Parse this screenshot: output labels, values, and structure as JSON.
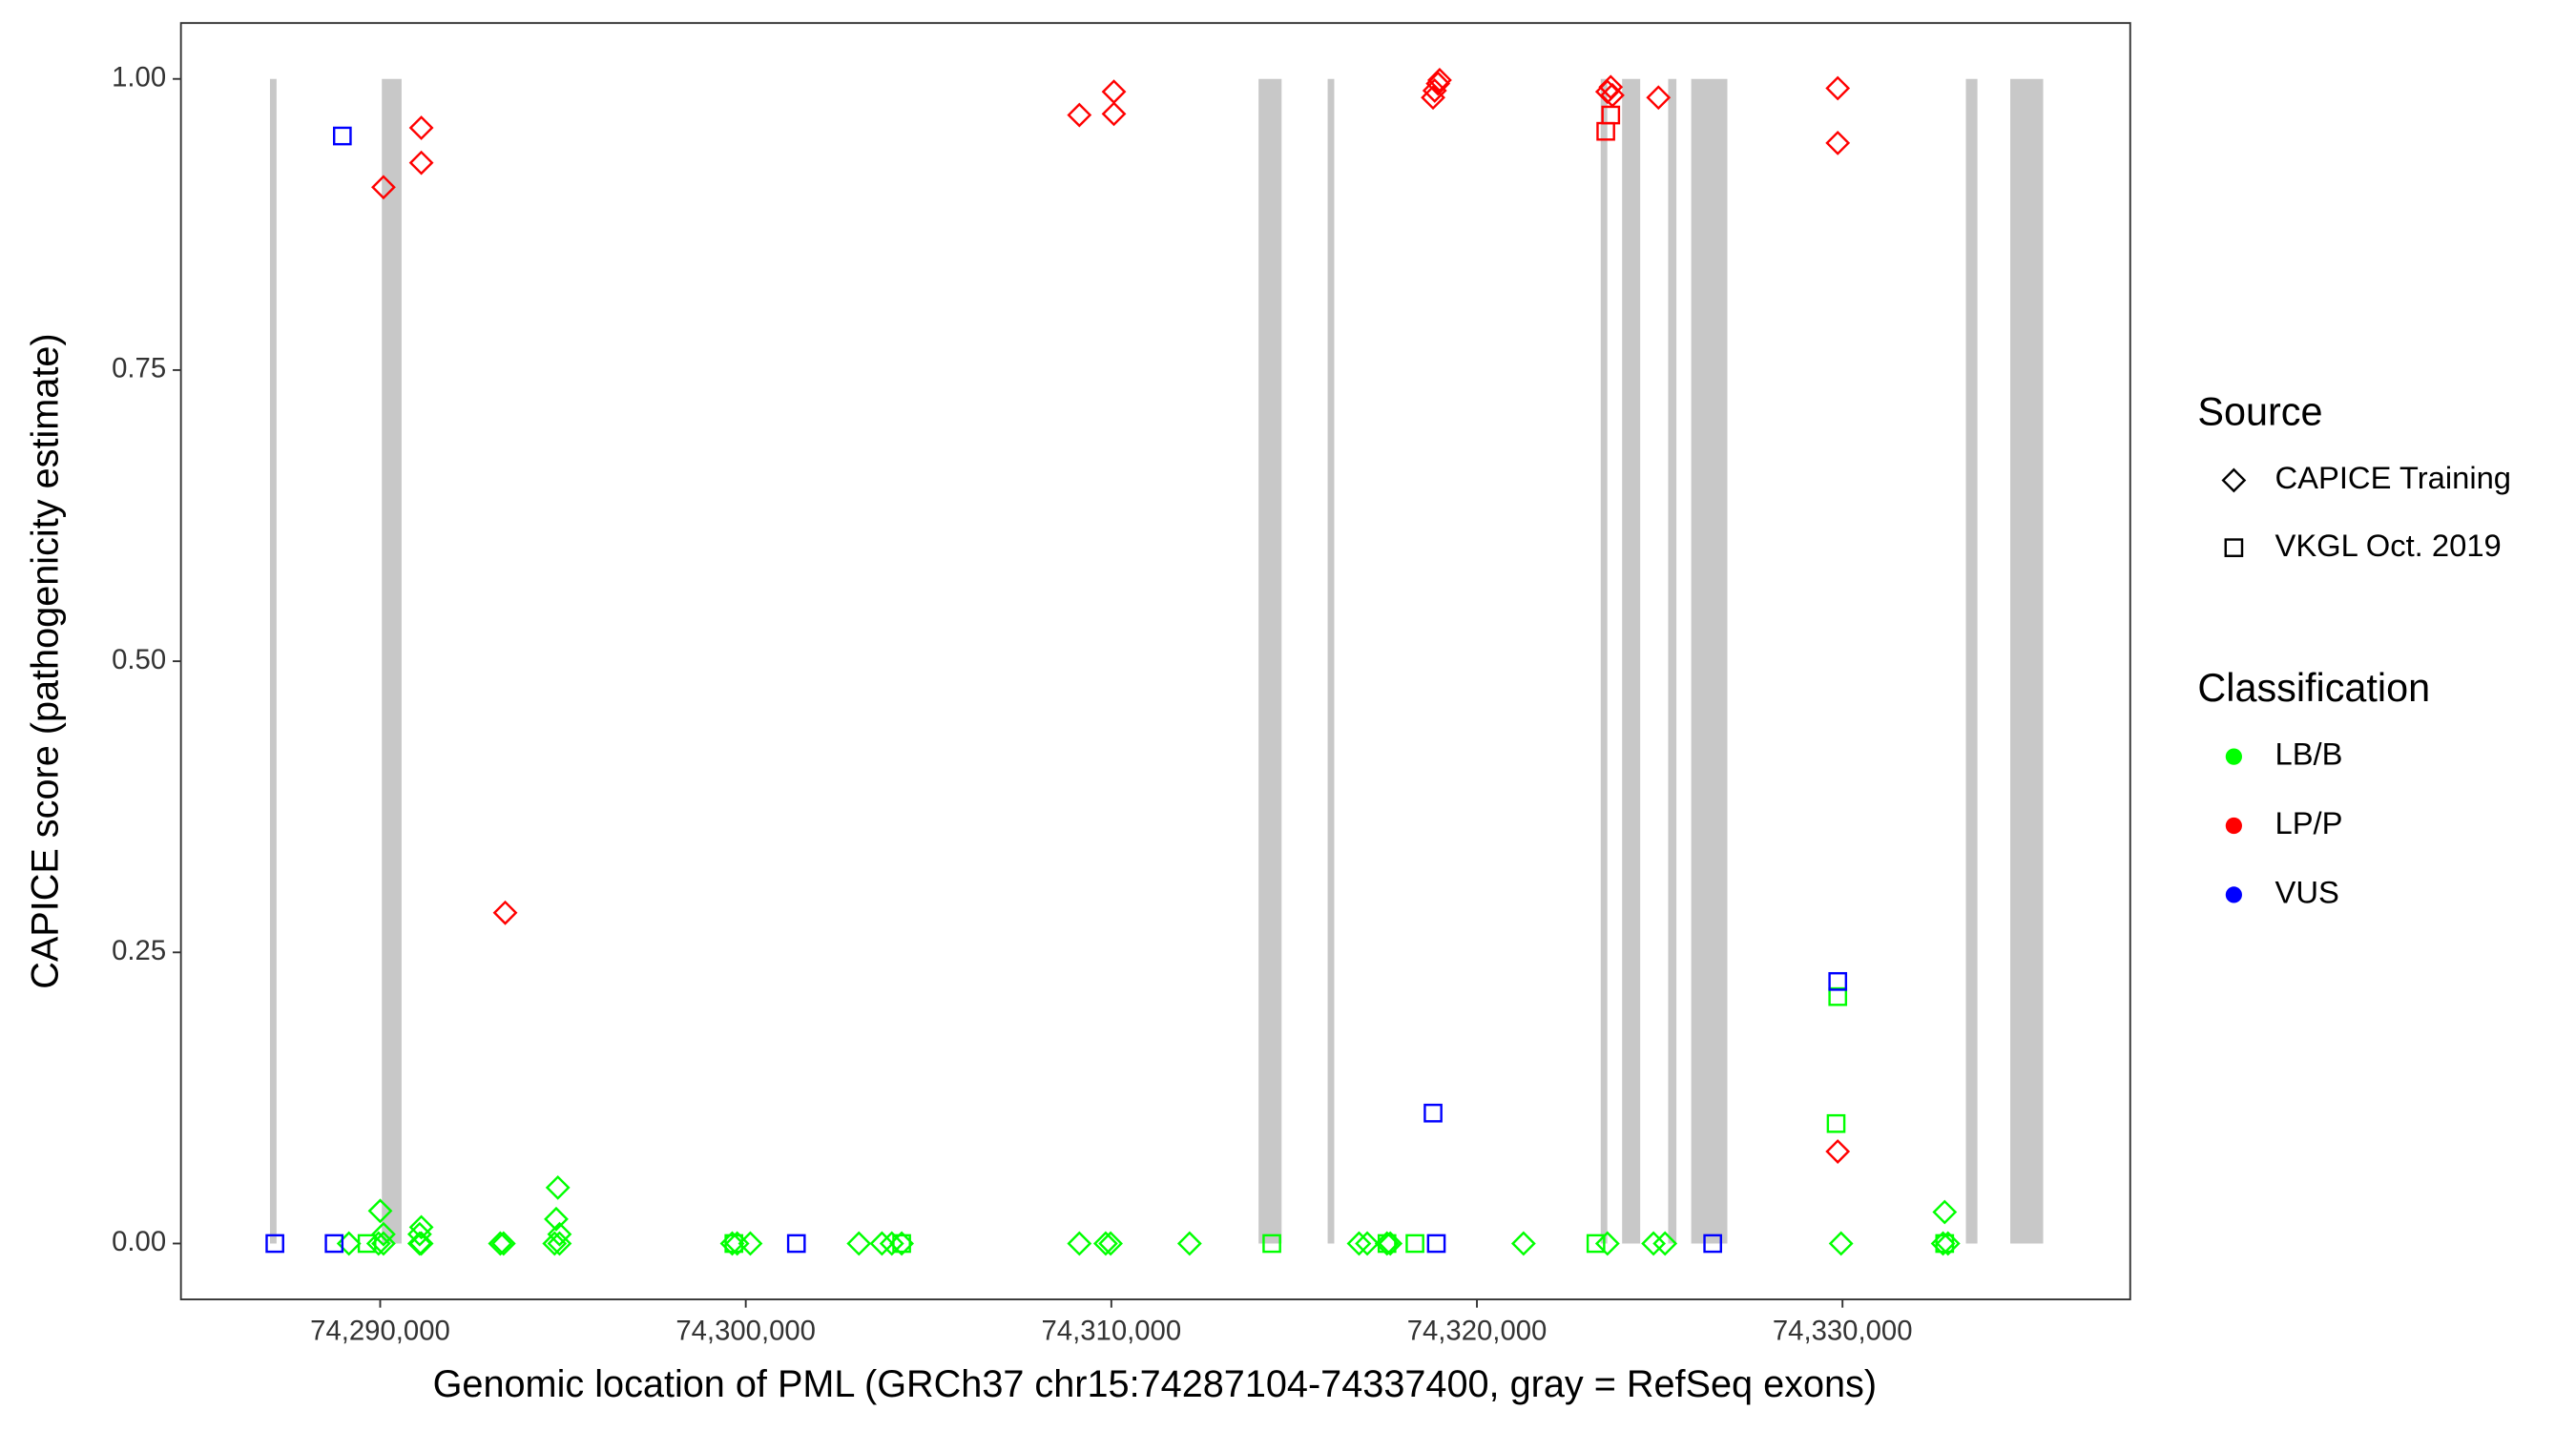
{
  "chart_data": {
    "type": "scatter",
    "xlabel": "Genomic location of PML (GRCh37 chr15:74287104-74337400, gray = RefSeq exons)",
    "ylabel": "CAPICE score (pathogenicity estimate)",
    "xlim": [
      74284550,
      74337870
    ],
    "ylim": [
      -0.048,
      1.048
    ],
    "xticks": [
      {
        "value": 74290000,
        "label": "74,290,000"
      },
      {
        "value": 74300000,
        "label": "74,300,000"
      },
      {
        "value": 74310000,
        "label": "74,310,000"
      },
      {
        "value": 74320000,
        "label": "74,320,000"
      },
      {
        "value": 74330000,
        "label": "74,330,000"
      }
    ],
    "yticks": [
      {
        "value": 0,
        "label": "0.00"
      },
      {
        "value": 0.25,
        "label": "0.25"
      },
      {
        "value": 0.5,
        "label": "0.50"
      },
      {
        "value": 0.75,
        "label": "0.75"
      },
      {
        "value": 1,
        "label": "1.00"
      }
    ],
    "exon_color": "#c8c8c8",
    "exons": [
      {
        "start": 74286985,
        "end": 74287165
      },
      {
        "start": 74290045,
        "end": 74290585
      },
      {
        "start": 74314027,
        "end": 74314657
      },
      {
        "start": 74315917,
        "end": 74316097
      },
      {
        "start": 74323386,
        "end": 74323566
      },
      {
        "start": 74323971,
        "end": 74324466
      },
      {
        "start": 74325231,
        "end": 74325456
      },
      {
        "start": 74325861,
        "end": 74326850
      },
      {
        "start": 74333375,
        "end": 74333690
      },
      {
        "start": 74334589,
        "end": 74335489
      }
    ],
    "source_title": "Source",
    "sources": [
      {
        "name": "CAPICE Training",
        "shape": "diamond"
      },
      {
        "name": "VKGL Oct. 2019",
        "shape": "square"
      }
    ],
    "classification_title": "Classification",
    "classifications": [
      {
        "name": "LB/B",
        "color": "#00ff00"
      },
      {
        "name": "LP/P",
        "color": "#ff0000"
      },
      {
        "name": "VUS",
        "color": "#0000ff"
      }
    ],
    "series": [
      {
        "source": 0,
        "classification": 0,
        "x": [
          74289145,
          74289955,
          74290090,
          74291125,
          74291080,
          74293285,
          74293375,
          74294905,
          74294770,
          74299630,
          74299765,
          74300125,
          74303095,
          74303725,
          74303995,
          74304265,
          74309125,
          74309845,
          74309980,
          74312140,
          74316775,
          74317000,
          74317540,
          74317630,
          74321275,
          74323570,
          74324830,
          74325145,
          74329960,
          74332750,
          74332885,
          74290000,
          74291125,
          74291080,
          74294860,
          74294815,
          74294905,
          74332795,
          74290090
        ],
        "y": [
          0,
          0,
          0,
          0,
          0,
          0,
          0,
          0,
          0,
          0,
          0,
          0,
          0,
          0,
          0,
          0,
          0,
          0,
          0,
          0,
          0,
          0,
          0,
          0,
          0,
          0,
          0,
          0,
          0,
          0,
          0,
          0.028,
          0.014,
          0.008,
          0.048,
          0.021,
          0.008,
          0.027,
          0.008
        ]
      },
      {
        "source": 1,
        "classification": 0,
        "x": [
          74289640,
          74299675,
          74314390,
          74317540,
          74318305,
          74323255,
          74329870,
          74329825,
          74332795,
          74304265
        ],
        "y": [
          0,
          0,
          0,
          0,
          0,
          0,
          0.212,
          0.103,
          0,
          0
        ]
      },
      {
        "source": 0,
        "classification": 1,
        "x": [
          74290090,
          74291125,
          74291125,
          74293420,
          74309125,
          74310070,
          74310070,
          74318800,
          74318845,
          74318935,
          74318980,
          74323570,
          74323660,
          74323705,
          74324965,
          74329870,
          74329870,
          74329870
        ],
        "y": [
          0.907,
          0.958,
          0.928,
          0.284,
          0.969,
          0.989,
          0.97,
          0.984,
          0.99,
          0.996,
          0.999,
          0.989,
          0.993,
          0.986,
          0.984,
          0.992,
          0.945,
          0.079
        ]
      },
      {
        "source": 1,
        "classification": 1,
        "x": [
          74323525,
          74323660
        ],
        "y": [
          0.955,
          0.969
        ]
      },
      {
        "source": 1,
        "classification": 2,
        "x": [
          74288965,
          74287120,
          74288740,
          74301385,
          74318800,
          74318890,
          74326450,
          74329870
        ],
        "y": [
          0.951,
          0,
          0,
          0,
          0.112,
          0,
          0,
          0.225
        ]
      }
    ]
  }
}
